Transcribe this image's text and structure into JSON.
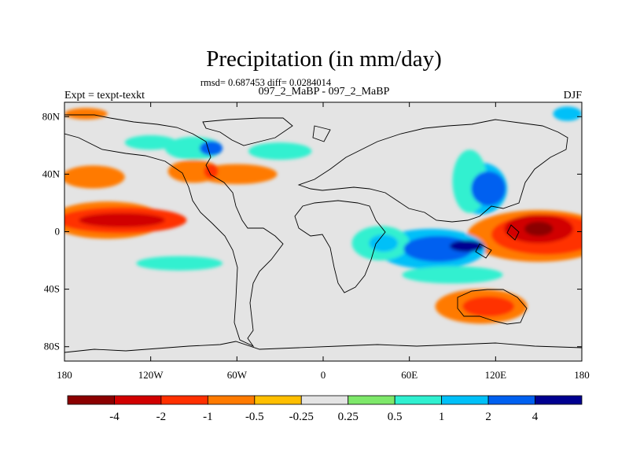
{
  "title": "Precipitation (in mm/day)",
  "stats_line": "rmsd= 0.687453 diff= 0.0284014",
  "subtitle": "097_2_MaBP - 097_2_MaBP",
  "left_label": "Expt = texpt-texkt",
  "right_label": "DJF",
  "chart_data": {
    "type": "heatmap",
    "projection": "cylindrical-equidistant",
    "variable": "precipitation difference",
    "units": "mm/day",
    "season": "DJF",
    "xlim": [
      -180,
      180
    ],
    "ylim": [
      -90,
      90
    ],
    "x_ticks": [
      {
        "value": -180,
        "label": "180"
      },
      {
        "value": -120,
        "label": "120W"
      },
      {
        "value": -60,
        "label": "60W"
      },
      {
        "value": 0,
        "label": "0"
      },
      {
        "value": 60,
        "label": "60E"
      },
      {
        "value": 120,
        "label": "120E"
      },
      {
        "value": 180,
        "label": "180"
      }
    ],
    "y_ticks": [
      {
        "value": 80,
        "label": "80N"
      },
      {
        "value": 40,
        "label": "40N"
      },
      {
        "value": 0,
        "label": "0"
      },
      {
        "value": -40,
        "label": "40S"
      },
      {
        "value": -80,
        "label": "80S"
      }
    ],
    "colorbar": {
      "colors": [
        "#8b0000",
        "#d10000",
        "#ff3000",
        "#ff7a00",
        "#ffbf00",
        "#e4e4e4",
        "#7ee86a",
        "#30f0d0",
        "#00c0f8",
        "#0060f0",
        "#000090"
      ],
      "labels": [
        "-4",
        "-2",
        "-1",
        "-0.5",
        "-0.25",
        "0.25",
        "0.5",
        "1",
        "2",
        "4"
      ]
    },
    "anomaly_regions": [
      {
        "lon": 150,
        "lat": 2,
        "rlon": 10,
        "rlat": 5,
        "level": -4
      },
      {
        "lon": 150,
        "lat": 2,
        "rlon": 24,
        "rlat": 10,
        "level": -2
      },
      {
        "lon": 155,
        "lat": -2,
        "rlon": 38,
        "rlat": 14,
        "level": -1
      },
      {
        "lon": 150,
        "lat": -3,
        "rlon": 50,
        "rlat": 18,
        "level": -0.5
      },
      {
        "lon": -140,
        "lat": 8,
        "rlon": 30,
        "rlat": 5,
        "level": -2
      },
      {
        "lon": -140,
        "lat": 8,
        "rlon": 45,
        "rlat": 9,
        "level": -1
      },
      {
        "lon": -150,
        "lat": 8,
        "rlon": 40,
        "rlat": 13,
        "level": -0.5
      },
      {
        "lon": -160,
        "lat": 38,
        "rlon": 22,
        "rlat": 8,
        "level": -0.5
      },
      {
        "lon": -90,
        "lat": 42,
        "rlon": 18,
        "rlat": 8,
        "level": -0.5
      },
      {
        "lon": -78,
        "lat": 42,
        "rlon": 5,
        "rlat": 5,
        "level": -1
      },
      {
        "lon": -60,
        "lat": 40,
        "rlon": 28,
        "rlat": 7,
        "level": -0.5
      },
      {
        "lon": 110,
        "lat": -52,
        "rlon": 32,
        "rlat": 12,
        "level": -0.5
      },
      {
        "lon": 115,
        "lat": -52,
        "rlon": 18,
        "rlat": 7,
        "level": -1
      },
      {
        "lon": -165,
        "lat": 82,
        "rlon": 15,
        "rlat": 4,
        "level": -0.5
      },
      {
        "lon": 102,
        "lat": 35,
        "rlon": 12,
        "rlat": 22,
        "level": 0.5
      },
      {
        "lon": 110,
        "lat": 30,
        "rlon": 18,
        "rlat": 18,
        "level": 1
      },
      {
        "lon": 115,
        "lat": 30,
        "rlon": 12,
        "rlat": 12,
        "level": 2
      },
      {
        "lon": 75,
        "lat": -12,
        "rlon": 38,
        "rlat": 14,
        "level": 1
      },
      {
        "lon": 80,
        "lat": -12,
        "rlon": 24,
        "rlat": 9,
        "level": 2
      },
      {
        "lon": 100,
        "lat": -10,
        "rlon": 12,
        "rlat": 4,
        "level": 4
      },
      {
        "lon": 90,
        "lat": -30,
        "rlon": 35,
        "rlat": 6,
        "level": 0.5
      },
      {
        "lon": -90,
        "lat": 58,
        "rlon": 20,
        "rlat": 8,
        "level": 0.5
      },
      {
        "lon": -78,
        "lat": 58,
        "rlon": 8,
        "rlat": 5,
        "level": 2
      },
      {
        "lon": -120,
        "lat": 62,
        "rlon": 18,
        "rlat": 5,
        "level": 0.5
      },
      {
        "lon": -30,
        "lat": 56,
        "rlon": 22,
        "rlat": 6,
        "level": 0.5
      },
      {
        "lon": 40,
        "lat": -8,
        "rlon": 20,
        "rlat": 12,
        "level": 0.5
      },
      {
        "lon": 42,
        "lat": -8,
        "rlon": 10,
        "rlat": 6,
        "level": 1
      },
      {
        "lon": -100,
        "lat": -22,
        "rlon": 30,
        "rlat": 5,
        "level": 0.5
      },
      {
        "lon": 170,
        "lat": 82,
        "rlon": 10,
        "rlat": 5,
        "level": 1
      }
    ]
  }
}
